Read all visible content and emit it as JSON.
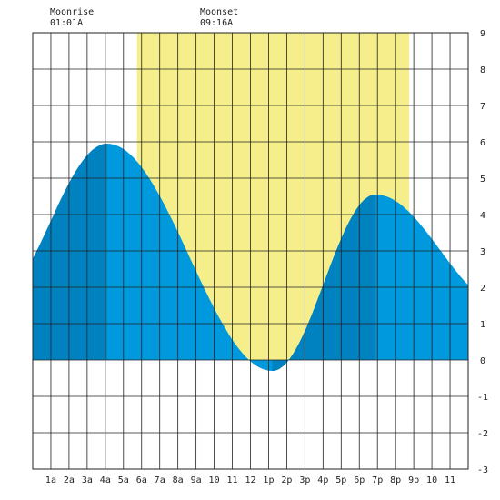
{
  "colors": {
    "daylight": "#f5ee8a",
    "tide_dark": "#0082c0",
    "tide_light": "#0099dd",
    "grid": "#222222",
    "background": "#ffffff"
  },
  "moon": {
    "rise_label": "Moonrise",
    "rise_time": "01:01A",
    "set_label": "Moonset",
    "set_time": "09:16A"
  },
  "chart_data": {
    "type": "area",
    "title": "",
    "xlabel": "",
    "ylabel": "",
    "xlim": [
      0,
      24
    ],
    "ylim": [
      -3,
      9
    ],
    "grid": true,
    "x_tick_labels": [
      "1a",
      "2a",
      "3a",
      "4a",
      "5a",
      "6a",
      "7a",
      "8a",
      "9a",
      "10",
      "11",
      "12",
      "1p",
      "2p",
      "3p",
      "4p",
      "5p",
      "6p",
      "7p",
      "8p",
      "9p",
      "10",
      "11"
    ],
    "y_tick_labels": [
      "-3",
      "-2",
      "-1",
      "0",
      "1",
      "2",
      "3",
      "4",
      "5",
      "6",
      "7",
      "8",
      "9"
    ],
    "daylight_window": [
      5.75,
      20.75
    ],
    "moonrise_hour": 1.02,
    "moonset_hour": 9.27,
    "extremes": [
      {
        "hour": 4.1,
        "height": 5.95
      },
      {
        "hour": 13.2,
        "height": -0.3
      },
      {
        "hour": 18.9,
        "height": 4.55
      }
    ],
    "dark_bands": [
      [
        0,
        4.1
      ],
      [
        13.2,
        18.9
      ]
    ],
    "series": [
      {
        "x": [
          0,
          1,
          2,
          3,
          4,
          5,
          6,
          7,
          8,
          9,
          10,
          11,
          12,
          13,
          14,
          15,
          16,
          17,
          18,
          19,
          20,
          21,
          22,
          23,
          24
        ],
        "values": [
          2.1,
          2.6,
          3.8,
          5.2,
          5.95,
          5.8,
          5.3,
          4.5,
          3.4,
          2.1,
          1.0,
          0.3,
          0.0,
          -0.3,
          0.2,
          1.6,
          3.0,
          4.1,
          4.5,
          4.55,
          4.2,
          3.6,
          2.9,
          2.4,
          2.2
        ]
      }
    ]
  }
}
